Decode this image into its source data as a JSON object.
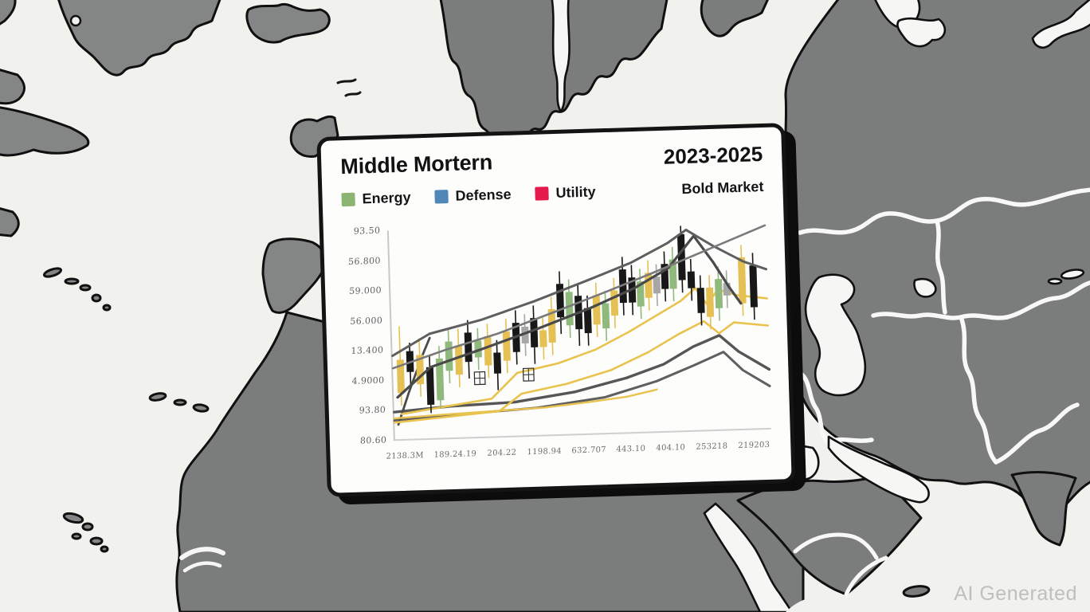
{
  "card": {
    "title": "Middle Mortern",
    "period": "2023-2025",
    "subtitle": "Bold Market",
    "legend": [
      {
        "label": "Energy",
        "color": "#8CB573"
      },
      {
        "label": "Defense",
        "color": "#4E87B8"
      },
      {
        "label": "Utility",
        "color": "#E5194C"
      }
    ]
  },
  "watermark": "AI Generated",
  "map": {
    "style": "grayscale stylized map of Europe, North Africa and the Middle East",
    "ocean_color": "#f1f1ee",
    "land_color": "#848585",
    "outline_color": "#101010",
    "country_border_color": "#f8f8f6"
  },
  "chart_data": {
    "type": "candlestick",
    "title": "Middle Mortern",
    "period_label": "2023-2025",
    "market_label": "Bold Market",
    "legend_entries": [
      "Energy",
      "Defense",
      "Utility"
    ],
    "note": "Axis tick labels are garbled AI-generated pseudo-numbers; overall trend rises left-to-right, peaks near right side, dips, then recovers",
    "y_tick_labels": [
      "93.50",
      "56.800",
      "59.000",
      "56.000",
      "13.400",
      "4.9000",
      "93.80",
      "80.60"
    ],
    "x_tick_labels": [
      "2138.3M",
      "189.24.19",
      "204.22",
      "1198.94",
      "632.707",
      "443.10",
      "404.10",
      "253218",
      "219203"
    ],
    "colors": {
      "k": "#181818",
      "y": "#E5C054",
      "g": "#90BA7D",
      "x": "#A6A6A6",
      "line_gray_dark": "#4a4a4a",
      "line_gray_mid": "#5f5f5f",
      "line_gray_light": "#7a7a7a",
      "line_gray_bottom": "#565656",
      "line_yellow": "#E8C34E"
    },
    "candle_format": "[x%, bodyTop%, bodyBottom%, wickTop%, wickBottom%, colorKey] — percentages of plot area, y measured from top",
    "candles": [
      [
        2.0,
        62,
        78,
        46,
        84,
        "y"
      ],
      [
        4.6,
        58,
        68,
        54,
        74,
        "k"
      ],
      [
        7.2,
        60,
        74,
        52,
        80,
        "y"
      ],
      [
        9.8,
        66,
        84,
        60,
        88,
        "k"
      ],
      [
        12.4,
        62,
        82,
        56,
        86,
        "g"
      ],
      [
        15.0,
        54,
        68,
        48,
        74,
        "g"
      ],
      [
        17.6,
        56,
        70,
        48,
        76,
        "y"
      ],
      [
        20.2,
        50,
        64,
        44,
        72,
        "k"
      ],
      [
        22.8,
        54,
        62,
        48,
        68,
        "g"
      ],
      [
        25.4,
        52,
        66,
        46,
        72,
        "y"
      ],
      [
        27.8,
        60,
        70,
        54,
        78,
        "k"
      ],
      [
        30.4,
        50,
        64,
        44,
        70,
        "y"
      ],
      [
        33.0,
        46,
        60,
        40,
        66,
        "k"
      ],
      [
        35.4,
        48,
        56,
        42,
        62,
        "x"
      ],
      [
        37.8,
        44,
        58,
        38,
        66,
        "k"
      ],
      [
        40.2,
        50,
        58,
        44,
        64,
        "y"
      ],
      [
        42.6,
        40,
        56,
        34,
        62,
        "y"
      ],
      [
        45.0,
        28,
        44,
        22,
        52,
        "k"
      ],
      [
        47.4,
        32,
        48,
        26,
        54,
        "g"
      ],
      [
        49.8,
        34,
        50,
        28,
        58,
        "k"
      ],
      [
        52.2,
        40,
        52,
        34,
        58,
        "k"
      ],
      [
        54.6,
        34,
        48,
        28,
        54,
        "y"
      ],
      [
        57.0,
        38,
        50,
        32,
        56,
        "g"
      ],
      [
        59.4,
        32,
        44,
        26,
        50,
        "y"
      ],
      [
        61.8,
        22,
        38,
        16,
        44,
        "k"
      ],
      [
        64.2,
        26,
        38,
        20,
        44,
        "k"
      ],
      [
        66.4,
        28,
        40,
        22,
        46,
        "g"
      ],
      [
        68.6,
        24,
        36,
        18,
        42,
        "y"
      ],
      [
        70.8,
        26,
        34,
        20,
        40,
        "x"
      ],
      [
        73.0,
        20,
        32,
        14,
        38,
        "k"
      ],
      [
        75.2,
        18,
        32,
        12,
        38,
        "g"
      ],
      [
        77.6,
        6,
        28,
        2,
        34,
        "k"
      ],
      [
        80.0,
        24,
        32,
        18,
        38,
        "k"
      ],
      [
        82.4,
        32,
        44,
        26,
        50,
        "k"
      ],
      [
        84.8,
        32,
        46,
        26,
        52,
        "y"
      ],
      [
        87.2,
        28,
        42,
        22,
        48,
        "g"
      ],
      [
        89.4,
        30,
        36,
        24,
        42,
        "x"
      ],
      [
        93.5,
        18,
        40,
        12,
        46,
        "y"
      ],
      [
        96.5,
        22,
        42,
        16,
        48,
        "k"
      ]
    ],
    "lines": [
      {
        "color": "line_gray_bottom",
        "width": 3.4,
        "layer": "back",
        "points": [
          [
            0,
            87
          ],
          [
            15,
            85
          ],
          [
            32,
            84
          ],
          [
            48,
            80
          ],
          [
            62,
            74
          ],
          [
            72,
            68
          ],
          [
            80,
            60
          ],
          [
            87,
            55
          ],
          [
            92,
            63
          ],
          [
            100,
            72
          ]
        ]
      },
      {
        "color": "line_gray_mid",
        "width": 3,
        "layer": "back",
        "points": [
          [
            0,
            91
          ],
          [
            18,
            89
          ],
          [
            38,
            87
          ],
          [
            56,
            83
          ],
          [
            70,
            76
          ],
          [
            80,
            69
          ],
          [
            88,
            63
          ],
          [
            93,
            72
          ],
          [
            100,
            80
          ]
        ]
      },
      {
        "color": "line_gray_dark",
        "width": 2.8,
        "layer": "back",
        "points": [
          [
            1,
            93
          ],
          [
            4,
            78
          ],
          [
            8,
            60
          ],
          [
            10,
            52
          ]
        ]
      },
      {
        "color": "line_yellow",
        "width": 2.6,
        "layer": "back",
        "points": [
          [
            0,
            92
          ],
          [
            14,
            90
          ],
          [
            28,
            88
          ],
          [
            34,
            80
          ],
          [
            46,
            76
          ],
          [
            58,
            70
          ],
          [
            68,
            62
          ],
          [
            76,
            54
          ],
          [
            83,
            48
          ],
          [
            87,
            54
          ],
          [
            91,
            49
          ],
          [
            100,
            51
          ]
        ]
      },
      {
        "color": "line_yellow",
        "width": 2.6,
        "layer": "back",
        "points": [
          [
            2,
            88
          ],
          [
            14,
            85
          ],
          [
            26,
            82
          ],
          [
            33,
            70
          ],
          [
            44,
            66
          ],
          [
            54,
            60
          ],
          [
            63,
            52
          ],
          [
            71,
            44
          ],
          [
            77,
            38
          ],
          [
            81,
            32
          ],
          [
            84,
            40
          ],
          [
            87,
            33
          ],
          [
            92,
            36
          ],
          [
            100,
            38
          ]
        ]
      },
      {
        "color": "line_yellow",
        "width": 2.4,
        "layer": "back",
        "points": [
          [
            0,
            90
          ],
          [
            12,
            89
          ],
          [
            26,
            88
          ],
          [
            40,
            87
          ],
          [
            52,
            85
          ],
          [
            62,
            83
          ],
          [
            70,
            80
          ]
        ]
      },
      {
        "color": "line_gray_dark",
        "width": 3.2,
        "layer": "front",
        "points": [
          [
            1,
            80
          ],
          [
            10,
            66
          ],
          [
            24,
            58
          ],
          [
            39,
            49
          ],
          [
            53,
            40
          ],
          [
            65,
            31
          ],
          [
            74,
            22
          ],
          [
            81,
            7
          ],
          [
            86,
            20
          ],
          [
            90,
            32
          ],
          [
            93,
            40
          ]
        ]
      },
      {
        "color": "line_gray_mid",
        "width": 3,
        "layer": "front",
        "points": [
          [
            0,
            60
          ],
          [
            10,
            50
          ],
          [
            24,
            44
          ],
          [
            38,
            36
          ],
          [
            52,
            27
          ],
          [
            64,
            19
          ],
          [
            74,
            10
          ],
          [
            79,
            4
          ],
          [
            86,
            12
          ],
          [
            94,
            20
          ],
          [
            100,
            24
          ]
        ]
      },
      {
        "color": "line_gray_light",
        "width": 2.6,
        "layer": "front",
        "points": [
          [
            0,
            66
          ],
          [
            14,
            58
          ],
          [
            28,
            51
          ],
          [
            44,
            41
          ],
          [
            58,
            32
          ],
          [
            70,
            24
          ],
          [
            80,
            17
          ],
          [
            90,
            10
          ],
          [
            100,
            3
          ]
        ]
      }
    ],
    "artifacts": [
      {
        "x": 23,
        "y": 72
      },
      {
        "x": 36,
        "y": 71
      }
    ],
    "grid": false,
    "legend_position": "top-left of card"
  }
}
